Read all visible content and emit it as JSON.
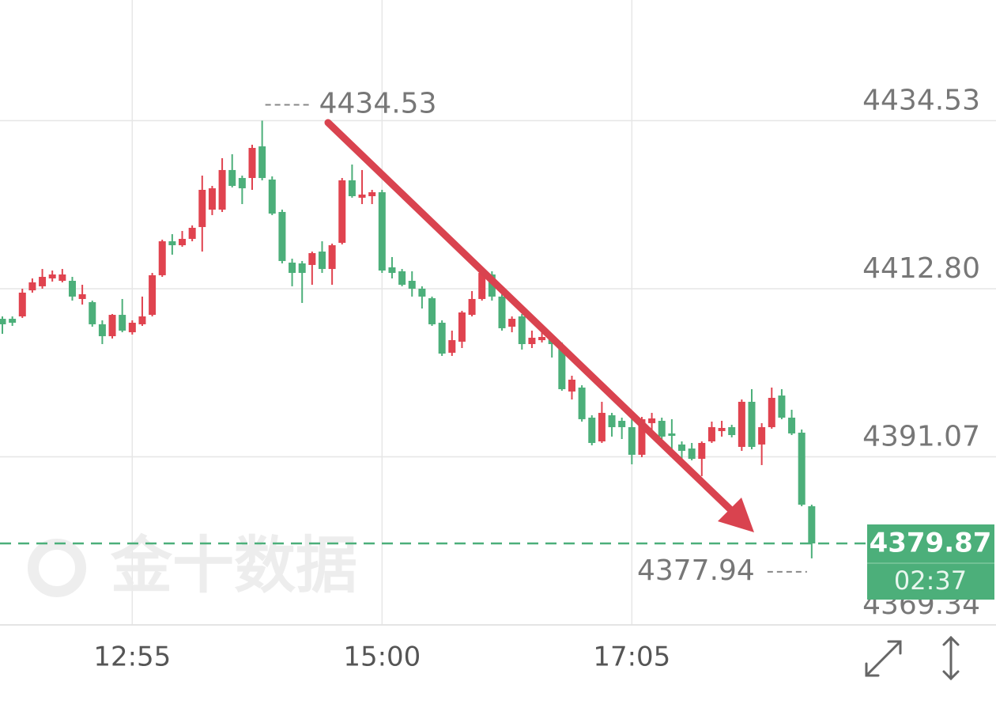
{
  "chart_data": {
    "type": "candlestick",
    "categories": [
      null,
      null,
      null,
      null,
      null,
      null,
      null,
      null,
      null,
      null,
      null,
      null,
      null,
      "12:55",
      null,
      null,
      null,
      null,
      null,
      null,
      null,
      null,
      null,
      null,
      null,
      null,
      null,
      null,
      null,
      null,
      null,
      null,
      null,
      null,
      null,
      null,
      null,
      null,
      "15:00",
      null,
      null,
      null,
      null,
      null,
      null,
      null,
      null,
      null,
      null,
      null,
      null,
      null,
      null,
      null,
      null,
      null,
      null,
      null,
      null,
      null,
      null,
      null,
      null,
      "17:05",
      null,
      null,
      null,
      null,
      null,
      null,
      null,
      null,
      null,
      null,
      null,
      null,
      null,
      null,
      null,
      null,
      null,
      null
    ],
    "open": [
      4408.91,
      4408.91,
      4409.22,
      4412.59,
      4413.11,
      4414.13,
      4413.82,
      4413.82,
      4411.47,
      4411.06,
      4408.2,
      4406.66,
      4409.42,
      4407.17,
      4408.2,
      4409.42,
      4414.54,
      4418.93,
      4418.42,
      4419.24,
      4420.77,
      4423.02,
      4423.02,
      4428.14,
      4427.11,
      4427.11,
      4431.2,
      4426.91,
      4422.72,
      4416.17,
      4416.07,
      4415.87,
      4417.6,
      4415.35,
      4418.73,
      4426.81,
      4424.56,
      4424.76,
      4425.27,
      4415.56,
      4415.05,
      4413.82,
      4412.8,
      4411.57,
      4408.4,
      4404.52,
      4405.95,
      4409.42,
      4411.47,
      4414.64,
      4411.78,
      4407.89,
      4409.22,
      4405.64,
      4406.15,
      4406.36,
      4405.13,
      4399.51,
      4400.02,
      4396.13,
      4393.06,
      4396.44,
      4395.72,
      4394.9,
      4391.33,
      4395.42,
      4395.72,
      4394.09,
      4392.66,
      4392.14,
      4390.81,
      4393.06,
      4394.39,
      4394.9,
      4392.35,
      4398.18,
      4392.66,
      4394.9,
      4398.99,
      4396.13,
      4394.19,
      4384.68
    ],
    "high": [
      4409.22,
      4409.22,
      4412.8,
      4414.13,
      4415.35,
      4415.15,
      4415.35,
      4414.33,
      4413.31,
      4411.26,
      4408.71,
      4409.53,
      4411.47,
      4408.71,
      4411.78,
      4414.84,
      4419.14,
      4419.85,
      4420.26,
      4420.98,
      4427.42,
      4426.09,
      4429.67,
      4430.18,
      4427.42,
      4431.41,
      4434.53,
      4427.32,
      4423.02,
      4416.68,
      4416.38,
      4417.6,
      4418.93,
      4418.63,
      4427.11,
      4428.85,
      4428.14,
      4425.58,
      4425.58,
      4416.89,
      4415.35,
      4415.05,
      4413.11,
      4411.78,
      4408.71,
      4407.38,
      4409.94,
      4412.49,
      4415.05,
      4415.05,
      4412.08,
      4409.22,
      4409.53,
      4407.38,
      4407.69,
      4406.66,
      4405.85,
      4401.55,
      4400.32,
      4396.44,
      4398.18,
      4396.75,
      4396.13,
      4396.13,
      4396.23,
      4396.75,
      4396.13,
      4395.93,
      4393.06,
      4392.86,
      4393.06,
      4395.62,
      4395.72,
      4395.21,
      4398.48,
      4399.81,
      4395.42,
      4400.02,
      4399.81,
      4397.15,
      4394.6,
      4384.88
    ],
    "low": [
      4406.97,
      4407.99,
      4409.02,
      4412.29,
      4412.8,
      4413.72,
      4413.62,
      4411.26,
      4410.75,
      4407.89,
      4405.64,
      4406.36,
      4407.17,
      4406.87,
      4407.99,
      4409.22,
      4414.33,
      4417.2,
      4418.22,
      4418.93,
      4417.6,
      4422.31,
      4422.72,
      4425.89,
      4423.74,
      4425.58,
      4426.81,
      4422.31,
      4416.07,
      4413.11,
      4410.96,
      4413.31,
      4414.84,
      4413.31,
      4418.52,
      4424.56,
      4423.74,
      4423.74,
      4414.84,
      4414.13,
      4413.11,
      4411.78,
      4410.24,
      4407.99,
      4404.11,
      4404.11,
      4405.13,
      4409.22,
      4411.26,
      4411.26,
      4407.38,
      4407.17,
      4404.93,
      4405.13,
      4405.85,
      4403.9,
      4399.61,
      4398.48,
      4395.62,
      4392.55,
      4392.86,
      4393.68,
      4393.37,
      4390.1,
      4391.02,
      4394.09,
      4393.37,
      4391.33,
      4390.81,
      4390.61,
      4388.57,
      4392.86,
      4393.68,
      4393.58,
      4391.84,
      4392.04,
      4390.0,
      4394.7,
      4395.93,
      4393.88,
      4384.68,
      4377.94
    ],
    "close": [
      4408.2,
      4408.4,
      4412.29,
      4413.62,
      4414.33,
      4414.64,
      4414.64,
      4411.78,
      4412.08,
      4408.2,
      4406.66,
      4409.42,
      4407.38,
      4408.4,
      4409.22,
      4414.54,
      4418.93,
      4418.42,
      4419.24,
      4420.67,
      4425.58,
      4425.78,
      4428.14,
      4426.09,
      4425.78,
      4431.0,
      4427.11,
      4422.51,
      4416.38,
      4414.84,
      4414.84,
      4417.4,
      4415.35,
      4418.42,
      4426.81,
      4424.76,
      4424.97,
      4425.27,
      4415.15,
      4414.84,
      4413.31,
      4412.8,
      4411.78,
      4408.2,
      4404.41,
      4406.15,
      4409.73,
      4411.47,
      4414.84,
      4411.78,
      4407.69,
      4408.91,
      4405.64,
      4406.46,
      4406.56,
      4405.64,
      4399.81,
      4401.04,
      4395.93,
      4392.86,
      4396.75,
      4394.9,
      4394.9,
      4391.33,
      4395.93,
      4396.03,
      4393.68,
      4393.78,
      4391.84,
      4390.81,
      4392.86,
      4394.9,
      4394.8,
      4393.88,
      4398.18,
      4392.35,
      4394.9,
      4398.69,
      4396.13,
      4394.09,
      4384.88,
      4379.87
    ],
    "up_color": "#e0434f",
    "down_color": "#4caf7a",
    "ylim": [
      4369.34,
      4450.12
    ],
    "yticks": [
      4434.53,
      {
        "value": 4412.8,
        "label": "4412.80"
      },
      4391.07,
      4369.34
    ],
    "grid": true,
    "high_label": "4434.53",
    "low_label": "4377.94",
    "last_price_label": "4379.87",
    "countdown": "02:37",
    "watermark": "金十数据"
  }
}
